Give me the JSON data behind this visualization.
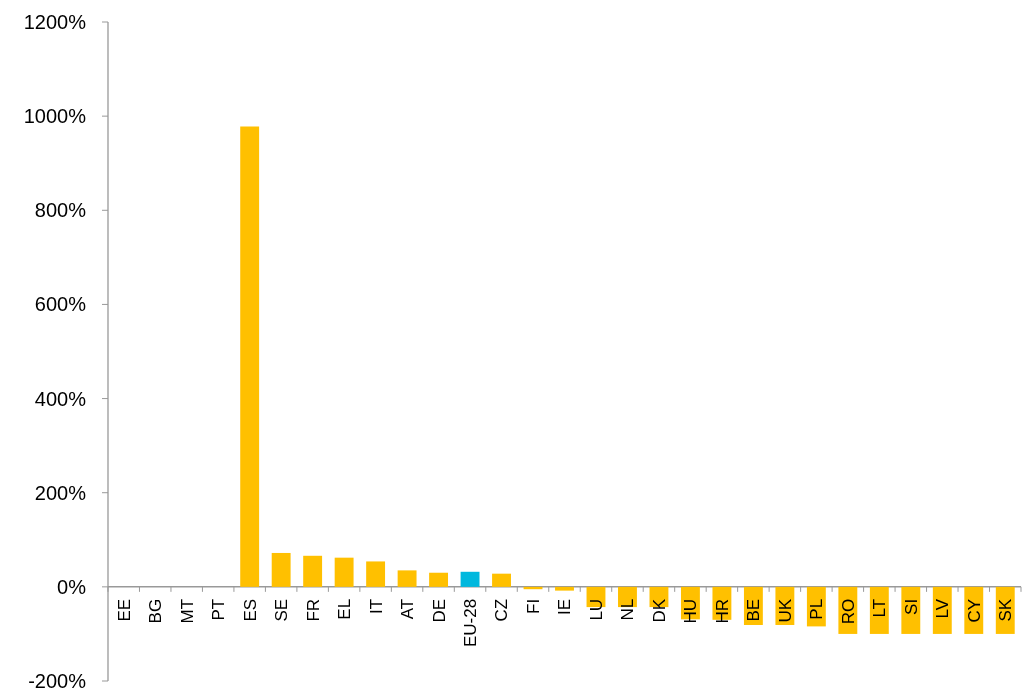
{
  "chart_data": {
    "type": "bar",
    "categories": [
      "EE",
      "BG",
      "MT",
      "PT",
      "ES",
      "SE",
      "FR",
      "EL",
      "IT",
      "AT",
      "DE",
      "EU-28",
      "CZ",
      "FI",
      "IE",
      "LU",
      "NL",
      "DK",
      "HU",
      "HR",
      "BE",
      "UK",
      "PL",
      "RO",
      "LT",
      "SI",
      "LV",
      "CY",
      "SK"
    ],
    "values": [
      0,
      0,
      0,
      0,
      978,
      72,
      66,
      62,
      54,
      35,
      30,
      32,
      28,
      -5,
      -8,
      -43,
      -43,
      -43,
      -69,
      -70,
      -81,
      -81,
      -84,
      -100,
      -100,
      -100,
      -100,
      -100,
      -100
    ],
    "colors": [
      "#ffc000",
      "#ffc000",
      "#ffc000",
      "#ffc000",
      "#ffc000",
      "#ffc000",
      "#ffc000",
      "#ffc000",
      "#ffc000",
      "#ffc000",
      "#ffc000",
      "#00b8de",
      "#ffc000",
      "#ffc000",
      "#ffc000",
      "#ffc000",
      "#ffc000",
      "#ffc000",
      "#ffc000",
      "#ffc000",
      "#ffc000",
      "#ffc000",
      "#ffc000",
      "#ffc000",
      "#ffc000",
      "#ffc000",
      "#ffc000",
      "#ffc000",
      "#ffc000"
    ],
    "ylim": [
      -200,
      1200
    ],
    "yticks": [
      {
        "value": -200,
        "label": "-200%"
      },
      {
        "value": 0,
        "label": "0%"
      },
      {
        "value": 200,
        "label": "200%"
      },
      {
        "value": 400,
        "label": "400%"
      },
      {
        "value": 600,
        "label": "600%"
      },
      {
        "value": 800,
        "label": "800%"
      },
      {
        "value": 1000,
        "label": "1000%"
      },
      {
        "value": 1200,
        "label": "1200%"
      }
    ],
    "grid": false
  }
}
